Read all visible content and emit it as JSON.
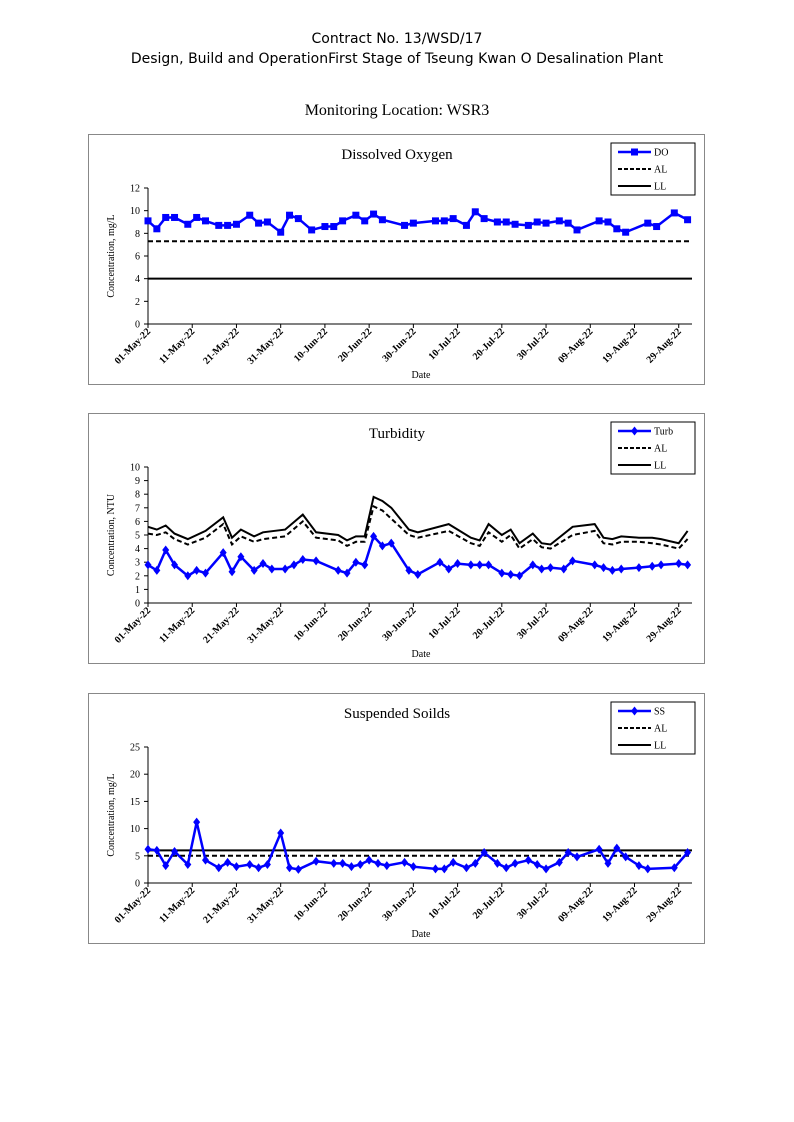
{
  "header": {
    "line1": "Contract No. 13/WSD/17",
    "line2": "Design, Build and OperationFirst Stage  of Tseung Kwan O Desalination Plant"
  },
  "location": "Monitoring Location: WSR3",
  "chart_data": [
    {
      "type": "line",
      "title": "Dissolved Oxygen",
      "xlabel": "Date",
      "ylabel": "Concentration, mg/L",
      "ylim": [
        0,
        12
      ],
      "yticks": [
        0,
        2,
        4,
        6,
        8,
        10,
        12
      ],
      "xlim": [
        "01-May-22",
        "01-Sep-22"
      ],
      "xticks": [
        "01-May-22",
        "11-May-22",
        "21-May-22",
        "31-May-22",
        "10-Jun-22",
        "20-Jun-22",
        "30-Jun-22",
        "10-Jul-22",
        "20-Jul-22",
        "30-Jul-22",
        "09-Aug-22",
        "19-Aug-22",
        "29-Aug-22"
      ],
      "legend": "top-right",
      "grid": false,
      "series": [
        {
          "name": "DO",
          "color": "#0000ff",
          "style": "solid",
          "marker": "square",
          "x": [
            "01-May-22",
            "03-May-22",
            "05-May-22",
            "07-May-22",
            "10-May-22",
            "12-May-22",
            "14-May-22",
            "17-May-22",
            "19-May-22",
            "21-May-22",
            "24-May-22",
            "26-May-22",
            "28-May-22",
            "31-May-22",
            "02-Jun-22",
            "04-Jun-22",
            "07-Jun-22",
            "10-Jun-22",
            "12-Jun-22",
            "14-Jun-22",
            "17-Jun-22",
            "19-Jun-22",
            "21-Jun-22",
            "23-Jun-22",
            "28-Jun-22",
            "30-Jun-22",
            "05-Jul-22",
            "07-Jul-22",
            "09-Jul-22",
            "12-Jul-22",
            "14-Jul-22",
            "16-Jul-22",
            "19-Jul-22",
            "21-Jul-22",
            "23-Jul-22",
            "26-Jul-22",
            "28-Jul-22",
            "30-Jul-22",
            "02-Aug-22",
            "04-Aug-22",
            "06-Aug-22",
            "11-Aug-22",
            "13-Aug-22",
            "15-Aug-22",
            "17-Aug-22",
            "22-Aug-22",
            "24-Aug-22",
            "28-Aug-22",
            "31-Aug-22"
          ],
          "values": [
            9.1,
            8.4,
            9.4,
            9.4,
            8.8,
            9.4,
            9.1,
            8.7,
            8.7,
            8.8,
            9.6,
            8.9,
            9.0,
            8.1,
            9.6,
            9.3,
            8.3,
            8.6,
            8.6,
            9.1,
            9.6,
            9.1,
            9.7,
            9.2,
            8.7,
            8.9,
            9.1,
            9.1,
            9.3,
            8.7,
            9.9,
            9.3,
            9.0,
            9.0,
            8.8,
            8.7,
            9.0,
            8.9,
            9.1,
            8.9,
            8.3,
            9.1,
            9.0,
            8.4,
            8.1,
            8.9,
            8.6,
            9.8,
            9.2
          ]
        },
        {
          "name": "AL",
          "color": "#000000",
          "style": "dashed",
          "value": 7.3
        },
        {
          "name": "LL",
          "color": "#000000",
          "style": "solid",
          "value": 4.0
        }
      ]
    },
    {
      "type": "line",
      "title": "Turbidity",
      "xlabel": "Date",
      "ylabel": "Concentration, NTU",
      "ylim": [
        0,
        10
      ],
      "yticks": [
        0,
        1,
        2,
        3,
        4,
        5,
        6,
        7,
        8,
        9,
        10
      ],
      "xlim": [
        "01-May-22",
        "01-Sep-22"
      ],
      "xticks": [
        "01-May-22",
        "11-May-22",
        "21-May-22",
        "31-May-22",
        "10-Jun-22",
        "20-Jun-22",
        "30-Jun-22",
        "10-Jul-22",
        "20-Jul-22",
        "30-Jul-22",
        "09-Aug-22",
        "19-Aug-22",
        "29-Aug-22"
      ],
      "legend": "top-right",
      "grid": false,
      "series": [
        {
          "name": "Turb",
          "color": "#0000ff",
          "style": "solid",
          "marker": "diamond",
          "x": [
            "01-May-22",
            "03-May-22",
            "05-May-22",
            "07-May-22",
            "10-May-22",
            "12-May-22",
            "14-May-22",
            "18-May-22",
            "20-May-22",
            "22-May-22",
            "25-May-22",
            "27-May-22",
            "29-May-22",
            "01-Jun-22",
            "03-Jun-22",
            "05-Jun-22",
            "08-Jun-22",
            "13-Jun-22",
            "15-Jun-22",
            "17-Jun-22",
            "19-Jun-22",
            "21-Jun-22",
            "23-Jun-22",
            "25-Jun-22",
            "29-Jun-22",
            "01-Jul-22",
            "06-Jul-22",
            "08-Jul-22",
            "10-Jul-22",
            "13-Jul-22",
            "15-Jul-22",
            "17-Jul-22",
            "20-Jul-22",
            "22-Jul-22",
            "24-Jul-22",
            "27-Jul-22",
            "29-Jul-22",
            "31-Jul-22",
            "03-Aug-22",
            "05-Aug-22",
            "10-Aug-22",
            "12-Aug-22",
            "14-Aug-22",
            "16-Aug-22",
            "20-Aug-22",
            "23-Aug-22",
            "25-Aug-22",
            "29-Aug-22",
            "31-Aug-22"
          ],
          "values": [
            2.8,
            2.4,
            3.9,
            2.8,
            2.0,
            2.4,
            2.2,
            3.7,
            2.3,
            3.4,
            2.4,
            2.9,
            2.5,
            2.5,
            2.8,
            3.2,
            3.1,
            2.4,
            2.2,
            3.0,
            2.8,
            4.9,
            4.2,
            4.4,
            2.4,
            2.1,
            3.0,
            2.5,
            2.9,
            2.8,
            2.8,
            2.8,
            2.2,
            2.1,
            2.0,
            2.8,
            2.5,
            2.6,
            2.5,
            3.1,
            2.8,
            2.6,
            2.4,
            2.5,
            2.6,
            2.7,
            2.8,
            2.9,
            2.8
          ]
        },
        {
          "name": "AL",
          "color": "#000000",
          "style": "dashed",
          "x": [
            "01-May-22",
            "03-May-22",
            "05-May-22",
            "07-May-22",
            "10-May-22",
            "14-May-22",
            "18-May-22",
            "20-May-22",
            "22-May-22",
            "25-May-22",
            "27-May-22",
            "01-Jun-22",
            "05-Jun-22",
            "08-Jun-22",
            "13-Jun-22",
            "15-Jun-22",
            "17-Jun-22",
            "19-Jun-22",
            "21-Jun-22",
            "23-Jun-22",
            "25-Jun-22",
            "29-Jun-22",
            "01-Jul-22",
            "08-Jul-22",
            "13-Jul-22",
            "15-Jul-22",
            "17-Jul-22",
            "20-Jul-22",
            "22-Jul-22",
            "24-Jul-22",
            "27-Jul-22",
            "29-Jul-22",
            "31-Jul-22",
            "05-Aug-22",
            "10-Aug-22",
            "12-Aug-22",
            "14-Aug-22",
            "16-Aug-22",
            "20-Aug-22",
            "23-Aug-22",
            "25-Aug-22",
            "29-Aug-22",
            "31-Aug-22"
          ],
          "values": [
            5.1,
            5.0,
            5.2,
            4.7,
            4.3,
            4.8,
            5.8,
            4.3,
            4.9,
            4.5,
            4.7,
            4.9,
            6.0,
            4.8,
            4.6,
            4.2,
            4.5,
            4.5,
            7.1,
            6.8,
            6.2,
            5.0,
            4.8,
            5.3,
            4.4,
            4.2,
            5.2,
            4.5,
            5.0,
            4.0,
            4.7,
            4.1,
            4.0,
            5.0,
            5.3,
            4.4,
            4.3,
            4.5,
            4.5,
            4.4,
            4.3,
            4.0,
            4.7
          ]
        },
        {
          "name": "LL",
          "color": "#000000",
          "style": "solid",
          "x": [
            "01-May-22",
            "03-May-22",
            "05-May-22",
            "07-May-22",
            "10-May-22",
            "14-May-22",
            "18-May-22",
            "20-May-22",
            "22-May-22",
            "25-May-22",
            "27-May-22",
            "01-Jun-22",
            "05-Jun-22",
            "08-Jun-22",
            "13-Jun-22",
            "15-Jun-22",
            "17-Jun-22",
            "19-Jun-22",
            "21-Jun-22",
            "23-Jun-22",
            "25-Jun-22",
            "29-Jun-22",
            "01-Jul-22",
            "08-Jul-22",
            "13-Jul-22",
            "15-Jul-22",
            "17-Jul-22",
            "20-Jul-22",
            "22-Jul-22",
            "24-Jul-22",
            "27-Jul-22",
            "29-Jul-22",
            "31-Jul-22",
            "05-Aug-22",
            "10-Aug-22",
            "12-Aug-22",
            "14-Aug-22",
            "16-Aug-22",
            "20-Aug-22",
            "23-Aug-22",
            "25-Aug-22",
            "29-Aug-22",
            "31-Aug-22"
          ],
          "values": [
            5.6,
            5.4,
            5.7,
            5.1,
            4.7,
            5.3,
            6.3,
            4.8,
            5.4,
            4.9,
            5.2,
            5.4,
            6.5,
            5.2,
            5.0,
            4.6,
            4.9,
            4.9,
            7.8,
            7.5,
            7.0,
            5.4,
            5.2,
            5.8,
            4.8,
            4.6,
            5.8,
            5.0,
            5.4,
            4.4,
            5.1,
            4.4,
            4.3,
            5.6,
            5.8,
            4.8,
            4.7,
            4.9,
            4.8,
            4.8,
            4.7,
            4.4,
            5.3
          ]
        }
      ]
    },
    {
      "type": "line",
      "title": "Suspended Soilds",
      "xlabel": "Date",
      "ylabel": "Concentration, mg/L",
      "ylim": [
        0,
        25
      ],
      "yticks": [
        0,
        5,
        10,
        15,
        20,
        25
      ],
      "xlim": [
        "01-May-22",
        "01-Sep-22"
      ],
      "xticks": [
        "01-May-22",
        "11-May-22",
        "21-May-22",
        "31-May-22",
        "10-Jun-22",
        "20-Jun-22",
        "30-Jun-22",
        "10-Jul-22",
        "20-Jul-22",
        "30-Jul-22",
        "09-Aug-22",
        "19-Aug-22",
        "29-Aug-22"
      ],
      "legend": "top-right",
      "grid": false,
      "series": [
        {
          "name": "SS",
          "color": "#0000ff",
          "style": "solid",
          "marker": "diamond",
          "x": [
            "01-May-22",
            "03-May-22",
            "05-May-22",
            "07-May-22",
            "10-May-22",
            "12-May-22",
            "14-May-22",
            "17-May-22",
            "19-May-22",
            "21-May-22",
            "24-May-22",
            "26-May-22",
            "28-May-22",
            "31-May-22",
            "02-Jun-22",
            "04-Jun-22",
            "08-Jun-22",
            "12-Jun-22",
            "14-Jun-22",
            "16-Jun-22",
            "18-Jun-22",
            "20-Jun-22",
            "22-Jun-22",
            "24-Jun-22",
            "28-Jun-22",
            "30-Jun-22",
            "05-Jul-22",
            "07-Jul-22",
            "09-Jul-22",
            "12-Jul-22",
            "14-Jul-22",
            "16-Jul-22",
            "19-Jul-22",
            "21-Jul-22",
            "23-Jul-22",
            "26-Jul-22",
            "28-Jul-22",
            "30-Jul-22",
            "02-Aug-22",
            "04-Aug-22",
            "06-Aug-22",
            "11-Aug-22",
            "13-Aug-22",
            "15-Aug-22",
            "17-Aug-22",
            "20-Aug-22",
            "22-Aug-22",
            "28-Aug-22",
            "31-Aug-22"
          ],
          "values": [
            6.2,
            6.0,
            3.2,
            5.8,
            3.4,
            11.2,
            4.2,
            2.8,
            3.8,
            3.0,
            3.4,
            2.8,
            3.4,
            9.2,
            2.8,
            2.5,
            4.0,
            3.6,
            3.6,
            3.0,
            3.4,
            4.2,
            3.6,
            3.2,
            3.8,
            3.0,
            2.6,
            2.6,
            3.8,
            2.8,
            3.6,
            5.6,
            3.6,
            2.8,
            3.6,
            4.2,
            3.4,
            2.6,
            3.8,
            5.6,
            4.8,
            6.2,
            3.6,
            6.4,
            4.8,
            3.2,
            2.6,
            2.8,
            5.6
          ]
        },
        {
          "name": "AL",
          "color": "#000000",
          "style": "dashed",
          "value": 5.0
        },
        {
          "name": "LL",
          "color": "#000000",
          "style": "solid",
          "value": 6.0
        }
      ]
    }
  ]
}
